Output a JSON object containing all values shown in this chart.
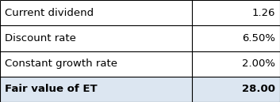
{
  "rows": [
    {
      "label": "Current dividend",
      "value": "1.26",
      "bold": false,
      "bg": "#ffffff"
    },
    {
      "label": "Discount rate",
      "value": "6.50%",
      "bold": false,
      "bg": "#ffffff"
    },
    {
      "label": "Constant growth rate",
      "value": "2.00%",
      "bold": false,
      "bg": "#ffffff"
    },
    {
      "label": "Fair value of ET",
      "value": "28.00",
      "bold": true,
      "bg": "#dce6f1"
    }
  ],
  "col_split": 0.685,
  "border_color": "#000000",
  "border_lw": 0.8,
  "font_size": 9.5,
  "text_color": "#000000",
  "fig_bg": "#ffffff",
  "fig_width": 3.53,
  "fig_height": 1.29,
  "dpi": 100
}
